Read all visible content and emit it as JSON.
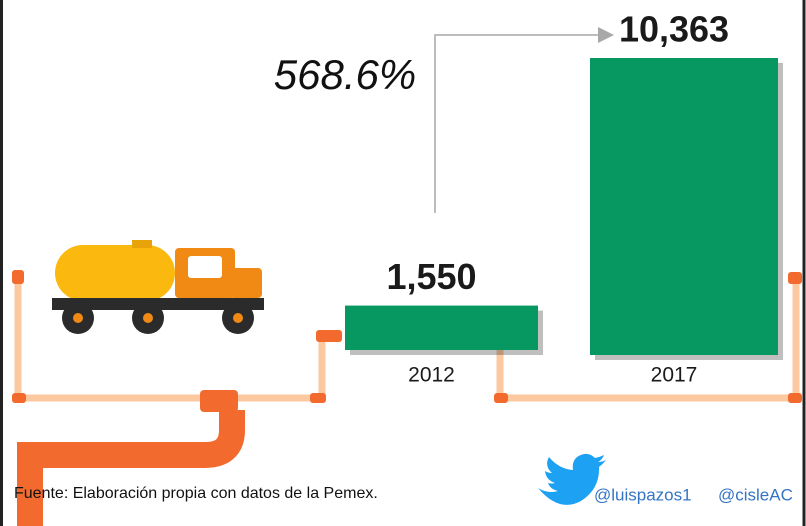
{
  "chart_data": {
    "type": "bar",
    "categories": [
      "2012",
      "2017"
    ],
    "values": [
      1550,
      10363
    ],
    "value_labels": [
      "1,550",
      "10,363"
    ],
    "color": "#079862",
    "annotation": "568.6%",
    "source": "Fuente: Elaboración propia con datos de la Pemex.",
    "handles": [
      "@luispazos1",
      "@cisleAC"
    ]
  }
}
